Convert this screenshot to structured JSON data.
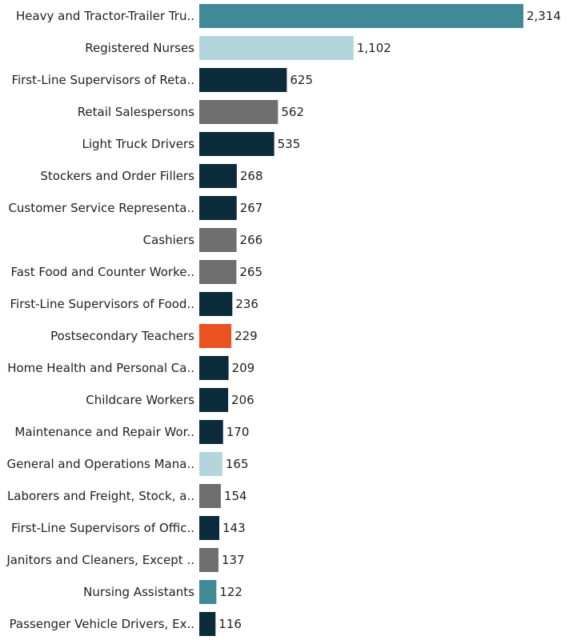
{
  "colors": {
    "teal": "#3f8a96",
    "light_blue": "#b5d5dc",
    "navy": "#0b2b3a",
    "gray": "#6e6e6e",
    "orange": "#e8531f"
  },
  "chart_data": {
    "type": "bar",
    "orientation": "horizontal",
    "title": "",
    "xlabel": "",
    "ylabel": "",
    "xlim": [
      0,
      2314
    ],
    "grid": false,
    "legend": "none",
    "categories": [
      "Heavy and Tractor-Trailer Tru..",
      "Registered Nurses",
      "First-Line Supervisors of Reta..",
      "Retail Salespersons",
      "Light Truck Drivers",
      "Stockers and Order Fillers",
      "Customer Service Representa..",
      "Cashiers",
      "Fast Food and Counter Worke..",
      "First-Line Supervisors of Food..",
      "Postsecondary Teachers",
      "Home Health and Personal Ca..",
      "Childcare Workers",
      "Maintenance and Repair Wor..",
      "General and Operations Mana..",
      "Laborers and Freight, Stock, a..",
      "First-Line Supervisors of Offic..",
      "Janitors and Cleaners, Except ..",
      "Nursing Assistants",
      "Passenger Vehicle Drivers, Ex.."
    ],
    "values": [
      2314,
      1102,
      625,
      562,
      535,
      268,
      267,
      266,
      265,
      236,
      229,
      209,
      206,
      170,
      165,
      154,
      143,
      137,
      122,
      116
    ],
    "value_labels": [
      "2,314",
      "1,102",
      "625",
      "562",
      "535",
      "268",
      "267",
      "266",
      "265",
      "236",
      "229",
      "209",
      "206",
      "170",
      "165",
      "154",
      "143",
      "137",
      "122",
      "116"
    ],
    "bar_colors": [
      "teal",
      "light_blue",
      "navy",
      "gray",
      "navy",
      "navy",
      "navy",
      "gray",
      "gray",
      "navy",
      "orange",
      "navy",
      "navy",
      "navy",
      "light_blue",
      "gray",
      "navy",
      "gray",
      "teal",
      "navy"
    ]
  }
}
